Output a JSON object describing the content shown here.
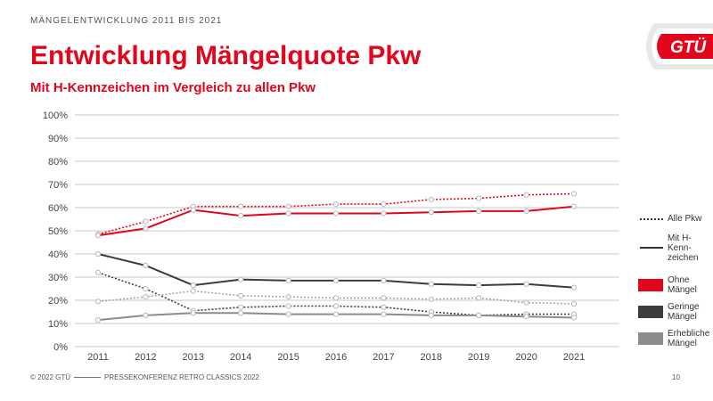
{
  "header": {
    "kicker": "MÄNGELENTWICKLUNG 2011 BIS 2021",
    "title": "Entwicklung Mängelquote Pkw",
    "subtitle": "Mit H-Kennzeichen im Vergleich zu allen Pkw"
  },
  "logo": {
    "text": "GTÜ",
    "color": "#e3051b"
  },
  "footer": {
    "copyright": "© 2022 GTÜ",
    "event": "PRESSEKONFERENZ RETRO CLASSICS 2022",
    "page": "10"
  },
  "legend": {
    "alle": "Alle Pkw",
    "mit_h": "Mit H-Kenn-zeichen",
    "ohne": "Ohne Mängel",
    "geringe": "Geringe Mängel",
    "erhebliche": "Erhebliche Mängel"
  },
  "chart_data": {
    "type": "line",
    "x": [
      "2011",
      "2012",
      "2013",
      "2014",
      "2015",
      "2016",
      "2017",
      "2018",
      "2019",
      "2020",
      "2021"
    ],
    "ylim": [
      0,
      100
    ],
    "yticks": [
      "0%",
      "10%",
      "20%",
      "30%",
      "40%",
      "50%",
      "60%",
      "70%",
      "80%",
      "90%",
      "100%"
    ],
    "grid": true,
    "legend_position": "right",
    "series": [
      {
        "category": "Ohne Mängel",
        "group": "Alle Pkw",
        "color": "#e3051b",
        "style": "dotted",
        "values": [
          48.5,
          54,
          60.5,
          60.5,
          60.5,
          61.5,
          61.5,
          63.5,
          64,
          65.5,
          66
        ]
      },
      {
        "category": "Ohne Mängel",
        "group": "Mit H-Kennzeichen",
        "color": "#e3051b",
        "style": "solid",
        "values": [
          48,
          51,
          59,
          56.5,
          57.5,
          57.5,
          57.5,
          58,
          58.5,
          58.5,
          60.5
        ]
      },
      {
        "category": "Geringe Mängel",
        "group": "Alle Pkw",
        "color": "#3c3c3c",
        "style": "dotted",
        "values": [
          32,
          25,
          15.5,
          17,
          17.5,
          17.5,
          17,
          15,
          13.5,
          14,
          14
        ]
      },
      {
        "category": "Geringe Mängel",
        "group": "Mit H-Kennzeichen",
        "color": "#3c3c3c",
        "style": "solid",
        "values": [
          40,
          35,
          26.5,
          29,
          28.5,
          28.5,
          28.5,
          27,
          26.5,
          27,
          25.5
        ]
      },
      {
        "category": "Erhebliche Mängel",
        "group": "Alle Pkw",
        "color": "#a8a8a8",
        "style": "dotted",
        "values": [
          19.5,
          21.5,
          24,
          22,
          21.5,
          21,
          21,
          20.5,
          21,
          19,
          18.5
        ]
      },
      {
        "category": "Erhebliche Mängel",
        "group": "Mit H-Kennzeichen",
        "color": "#8c8c8c",
        "style": "solid",
        "values": [
          11.5,
          13.5,
          14.5,
          14.5,
          14,
          14,
          14,
          13.5,
          13.5,
          13,
          12.5
        ]
      }
    ]
  }
}
